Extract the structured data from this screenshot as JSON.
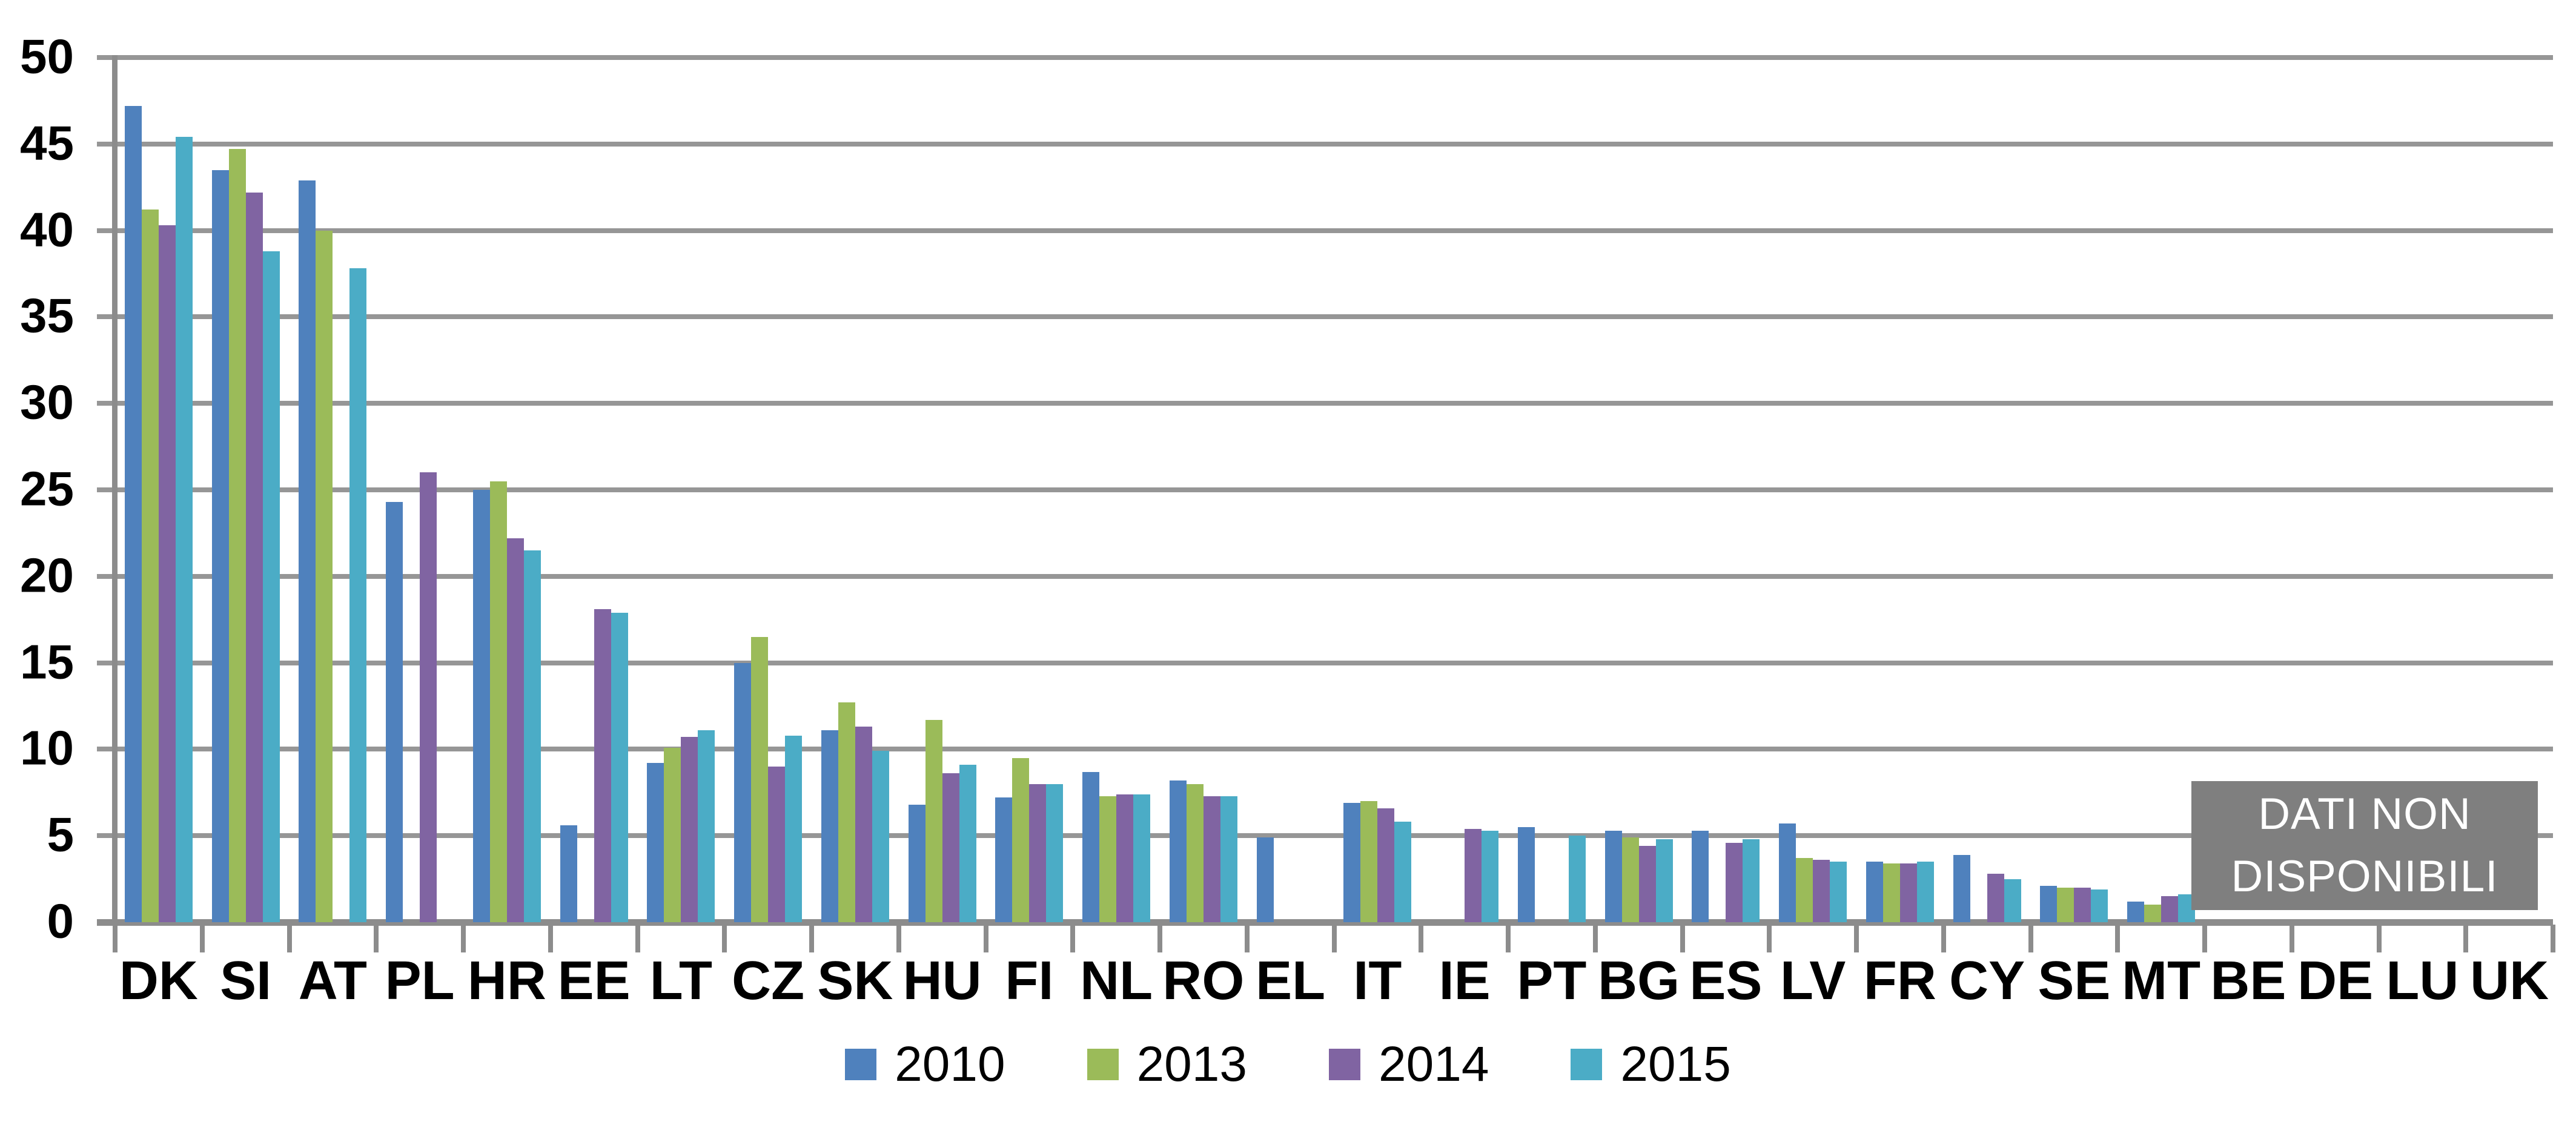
{
  "chart_data": {
    "type": "bar",
    "title": "",
    "xlabel": "",
    "ylabel": "",
    "ylim": [
      0,
      50
    ],
    "ytick_step": 5,
    "yticks": [
      "0",
      "5",
      "10",
      "15",
      "20",
      "25",
      "30",
      "35",
      "40",
      "45",
      "50"
    ],
    "grid": true,
    "legend_position": "bottom",
    "categories": [
      "DK",
      "SI",
      "AT",
      "PL",
      "HR",
      "EE",
      "LT",
      "CZ",
      "SK",
      "HU",
      "FI",
      "NL",
      "RO",
      "EL",
      "IT",
      "IE",
      "PT",
      "BG",
      "ES",
      "LV",
      "FR",
      "CY",
      "SE",
      "MT",
      "BE",
      "DE",
      "LU",
      "UK"
    ],
    "series": [
      {
        "name": "2010",
        "color": "#4F81BD",
        "values": [
          47.2,
          43.5,
          42.9,
          24.3,
          25.0,
          5.6,
          9.2,
          15.0,
          11.1,
          6.8,
          7.2,
          8.7,
          8.2,
          4.9,
          6.9,
          null,
          5.5,
          5.3,
          5.3,
          5.7,
          3.5,
          3.9,
          2.1,
          1.2,
          null,
          null,
          null,
          null
        ]
      },
      {
        "name": "2013",
        "color": "#9BBB59",
        "values": [
          41.2,
          44.7,
          40.0,
          null,
          25.5,
          null,
          10.1,
          16.5,
          12.7,
          11.7,
          9.5,
          7.3,
          8.0,
          null,
          7.0,
          null,
          null,
          4.9,
          null,
          3.7,
          3.4,
          null,
          2.0,
          1.0,
          null,
          null,
          null,
          null
        ]
      },
      {
        "name": "2014",
        "color": "#8064A2",
        "values": [
          40.3,
          42.2,
          null,
          26.0,
          22.2,
          18.1,
          10.7,
          9.0,
          11.3,
          8.6,
          8.0,
          7.4,
          7.3,
          null,
          6.6,
          5.4,
          null,
          4.4,
          4.6,
          3.6,
          3.4,
          2.8,
          2.0,
          1.5,
          null,
          null,
          null,
          null
        ]
      },
      {
        "name": "2015",
        "color": "#4BACC6",
        "values": [
          45.4,
          38.8,
          37.8,
          null,
          21.5,
          17.9,
          11.1,
          10.8,
          9.9,
          9.1,
          8.0,
          7.4,
          7.3,
          null,
          5.8,
          5.3,
          5.0,
          4.8,
          4.8,
          3.5,
          3.5,
          2.5,
          1.9,
          1.6,
          null,
          null,
          null,
          null
        ]
      }
    ],
    "no_data": {
      "line1": "DATI NON",
      "line2": "DISPONIBILI"
    },
    "no_data_countries": [
      "BE",
      "DE",
      "LU",
      "UK"
    ],
    "colors": {
      "gridline": "#969696",
      "axis": "#8C8C8C",
      "no_data_box_bg": "#7F7F7F",
      "no_data_box_text": "#FFFFFF",
      "label_text": "#000000"
    }
  }
}
